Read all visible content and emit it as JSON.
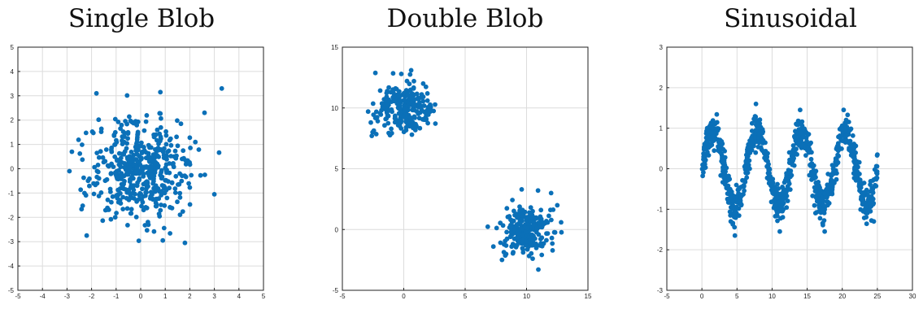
{
  "chart_data": [
    {
      "type": "scatter",
      "title": "Single Blob",
      "xlim": [
        -5,
        5
      ],
      "ylim": [
        -5,
        5
      ],
      "xticks": [
        -5,
        -4,
        -3,
        -2,
        -1,
        0,
        1,
        2,
        3,
        4,
        5
      ],
      "yticks": [
        -5,
        -4,
        -3,
        -2,
        -1,
        0,
        1,
        2,
        3,
        4,
        5
      ],
      "grid": true,
      "color": "#0b70b8",
      "distribution": {
        "kind": "gaussian_blob",
        "n": 500,
        "center": [
          0,
          0
        ],
        "std": [
          1.0,
          1.0
        ]
      },
      "highlight_points": [
        [
          3.3,
          3.3
        ],
        [
          0.8,
          3.15
        ],
        [
          -1.8,
          3.1
        ],
        [
          2.6,
          2.3
        ],
        [
          -2.2,
          -2.75
        ],
        [
          1.8,
          -3.05
        ],
        [
          0.9,
          -2.95
        ],
        [
          3.0,
          -1.05
        ],
        [
          -2.8,
          0.7
        ],
        [
          -2.9,
          -0.1
        ]
      ]
    },
    {
      "type": "scatter",
      "title": "Double Blob",
      "xlim": [
        -5,
        15
      ],
      "ylim": [
        -5,
        15
      ],
      "xticks": [
        -5,
        0,
        5,
        10,
        15
      ],
      "yticks": [
        -5,
        0,
        5,
        10,
        15
      ],
      "grid": true,
      "color": "#0b70b8",
      "distribution": {
        "kind": "two_gaussian_blobs",
        "n_per_blob": 250,
        "centers": [
          [
            0,
            10
          ],
          [
            10,
            0
          ]
        ],
        "std": [
          1.0,
          1.0
        ]
      },
      "highlight_points": [
        [
          0.6,
          13.1
        ],
        [
          -0.2,
          12.8
        ],
        [
          2.2,
          10.1
        ],
        [
          -2.6,
          7.7
        ],
        [
          -2.9,
          9.7
        ],
        [
          12.5,
          2.0
        ],
        [
          12.0,
          3.0
        ],
        [
          9.6,
          3.3
        ],
        [
          7.3,
          -1.4
        ],
        [
          10.5,
          -2.4
        ],
        [
          8.0,
          -2.5
        ]
      ]
    },
    {
      "type": "scatter",
      "title": "Sinusoidal",
      "xlim": [
        -5,
        30
      ],
      "ylim": [
        -3,
        3
      ],
      "xticks": [
        -5,
        0,
        5,
        10,
        15,
        20,
        25,
        30
      ],
      "yticks": [
        -3,
        -2,
        -1,
        0,
        1,
        2,
        3
      ],
      "grid": true,
      "color": "#0b70b8",
      "distribution": {
        "kind": "noisy_sine",
        "n": 1000,
        "x_range": [
          0,
          25
        ],
        "amplitude": 0.9,
        "period": 6.28,
        "noise_std": 0.2
      },
      "highlight_points": [
        [
          7.7,
          1.6
        ],
        [
          14.0,
          1.45
        ],
        [
          20.2,
          1.45
        ],
        [
          4.7,
          -1.65
        ],
        [
          11.1,
          -1.55
        ],
        [
          17.5,
          -1.55
        ],
        [
          25.0,
          0.35
        ],
        [
          24.5,
          -1.3
        ]
      ]
    }
  ]
}
